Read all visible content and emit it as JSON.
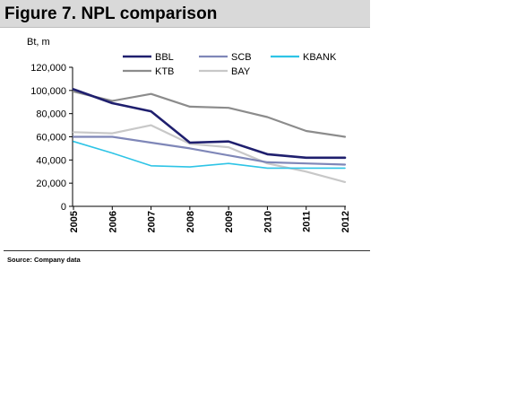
{
  "figure": {
    "title": "Figure 7. NPL comparison",
    "source": "Source: Company data"
  },
  "chart_data": {
    "type": "line",
    "title": "Figure 7. NPL comparison",
    "ylabel": "Bt, m",
    "xlabel": "",
    "x": [
      "2005",
      "2006",
      "2007",
      "2008",
      "2009",
      "2010",
      "2011",
      "2012"
    ],
    "ylim": [
      0,
      120000
    ],
    "yticks": [
      0,
      20000,
      40000,
      60000,
      80000,
      100000,
      120000
    ],
    "ytick_labels": [
      "0",
      "20,000",
      "40,000",
      "60,000",
      "80,000",
      "100,000",
      "120,000"
    ],
    "grid": false,
    "legend_position": "top",
    "series": [
      {
        "name": "BBL",
        "color": "#1f1f6e",
        "width": 2.6,
        "values": [
          101000,
          89000,
          82000,
          55000,
          56000,
          45000,
          42000,
          42000
        ]
      },
      {
        "name": "SCB",
        "color": "#7f87b8",
        "width": 2.2,
        "values": [
          60000,
          60000,
          55000,
          50000,
          44000,
          38000,
          37000,
          36000
        ]
      },
      {
        "name": "KBANK",
        "color": "#2ec4e6",
        "width": 1.6,
        "values": [
          56000,
          46000,
          35000,
          34000,
          37000,
          33000,
          33000,
          33000
        ]
      },
      {
        "name": "KTB",
        "color": "#8c8c8c",
        "width": 2.2,
        "values": [
          99000,
          91000,
          97000,
          86000,
          85000,
          77000,
          65000,
          60000
        ]
      },
      {
        "name": "BAY",
        "color": "#c8c8c8",
        "width": 2.2,
        "values": [
          64000,
          63000,
          70000,
          54000,
          51000,
          37000,
          30000,
          21000
        ]
      }
    ]
  }
}
